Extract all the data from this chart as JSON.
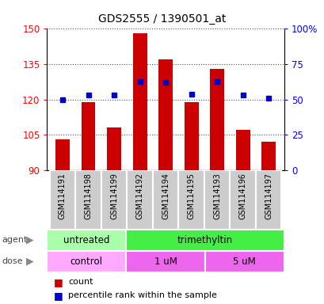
{
  "title": "GDS2555 / 1390501_at",
  "samples": [
    "GSM114191",
    "GSM114198",
    "GSM114199",
    "GSM114192",
    "GSM114194",
    "GSM114195",
    "GSM114193",
    "GSM114196",
    "GSM114197"
  ],
  "count_values": [
    103,
    119,
    108,
    148,
    137,
    119,
    133,
    107,
    102
  ],
  "percentile_values": [
    50,
    53,
    53,
    63,
    62,
    54,
    63,
    53,
    51
  ],
  "ylim_left": [
    90,
    150
  ],
  "ylim_right": [
    0,
    100
  ],
  "yticks_left": [
    90,
    105,
    120,
    135,
    150
  ],
  "yticks_right": [
    0,
    25,
    50,
    75,
    100
  ],
  "ytick_labels_right": [
    "0",
    "25",
    "50",
    "75",
    "100%"
  ],
  "bar_color": "#cc0000",
  "dot_color": "#0000cc",
  "agent_groups": [
    {
      "label": "untreated",
      "start": 0,
      "end": 3,
      "color": "#aaffaa"
    },
    {
      "label": "trimethyltin",
      "start": 3,
      "end": 9,
      "color": "#44ee44"
    }
  ],
  "dose_groups": [
    {
      "label": "control",
      "start": 0,
      "end": 3,
      "color": "#ffaaff"
    },
    {
      "label": "1 uM",
      "start": 3,
      "end": 6,
      "color": "#ee66ee"
    },
    {
      "label": "5 uM",
      "start": 6,
      "end": 9,
      "color": "#ee66ee"
    }
  ],
  "legend_count_label": "count",
  "legend_percentile_label": "percentile rank within the sample",
  "agent_label": "agent",
  "dose_label": "dose",
  "grid_color": "#888888",
  "sample_bg_color": "#cccccc",
  "sample_border_color": "#ffffff"
}
